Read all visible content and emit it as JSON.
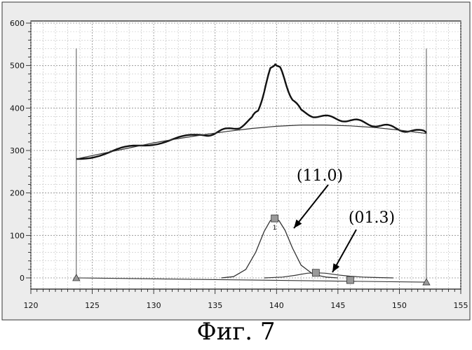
{
  "caption": "Фиг. 7",
  "chart_data": {
    "type": "line",
    "xlim": [
      120,
      155
    ],
    "ylim": [
      0,
      600
    ],
    "x_ticks": [
      120,
      125,
      130,
      135,
      140,
      145,
      150,
      155
    ],
    "y_ticks": [
      0,
      100,
      200,
      300,
      400,
      500,
      600
    ],
    "grid": true,
    "series": [
      {
        "id": "measured",
        "x": [
          123.7,
          126,
          128,
          130,
          132,
          134,
          135,
          136,
          137,
          138,
          138.5,
          139,
          139.5,
          139.9,
          140.3,
          140.8,
          141.3,
          142,
          143,
          144,
          145,
          146,
          147,
          148,
          149,
          150,
          151,
          152.2
        ],
        "y": [
          280,
          294,
          306,
          318,
          328,
          337,
          342,
          348,
          357,
          375,
          395,
          440,
          490,
          508,
          492,
          455,
          420,
          393,
          383,
          378,
          375,
          371,
          366,
          361,
          356,
          351,
          346,
          342
        ]
      },
      {
        "id": "background",
        "x": [
          123.7,
          126,
          128,
          130,
          132,
          134,
          136,
          138,
          140,
          142,
          144,
          146,
          148,
          150,
          152.2
        ],
        "y": [
          280,
          294,
          306,
          318,
          328,
          337,
          345,
          352,
          357,
          360,
          360,
          358,
          354,
          348,
          340
        ]
      },
      {
        "id": "peak-11.0",
        "x": [
          135.5,
          136.5,
          137.5,
          138.3,
          139,
          139.5,
          139.85,
          140.2,
          140.7,
          141.3,
          142,
          143,
          144,
          145
        ],
        "y": [
          0,
          3,
          20,
          60,
          110,
          135,
          140,
          135,
          112,
          70,
          30,
          8,
          2,
          0
        ]
      },
      {
        "id": "peak-01.3",
        "x": [
          139,
          140.5,
          141.5,
          142.5,
          143.2,
          144,
          145,
          146,
          147,
          148,
          149.5
        ],
        "y": [
          0,
          2,
          6,
          11,
          12,
          11,
          7,
          4,
          2,
          1,
          0
        ]
      },
      {
        "id": "baseline",
        "x": [
          123.7,
          152.2
        ],
        "y": [
          0,
          -10
        ]
      }
    ],
    "markers": [
      {
        "shape": "triangle",
        "x": 123.7,
        "y": 0
      },
      {
        "shape": "triangle",
        "x": 152.2,
        "y": -10
      },
      {
        "shape": "square",
        "x": 139.85,
        "y": 140,
        "label": "1"
      },
      {
        "shape": "square",
        "x": 143.2,
        "y": 12
      },
      {
        "shape": "square",
        "x": 146.0,
        "y": -5
      }
    ],
    "annotations": [
      {
        "text": "(11.0)",
        "arrow_to": [
          140.6,
          115
        ]
      },
      {
        "text": "(01.3)",
        "arrow_to": [
          144.3,
          15
        ]
      }
    ]
  }
}
